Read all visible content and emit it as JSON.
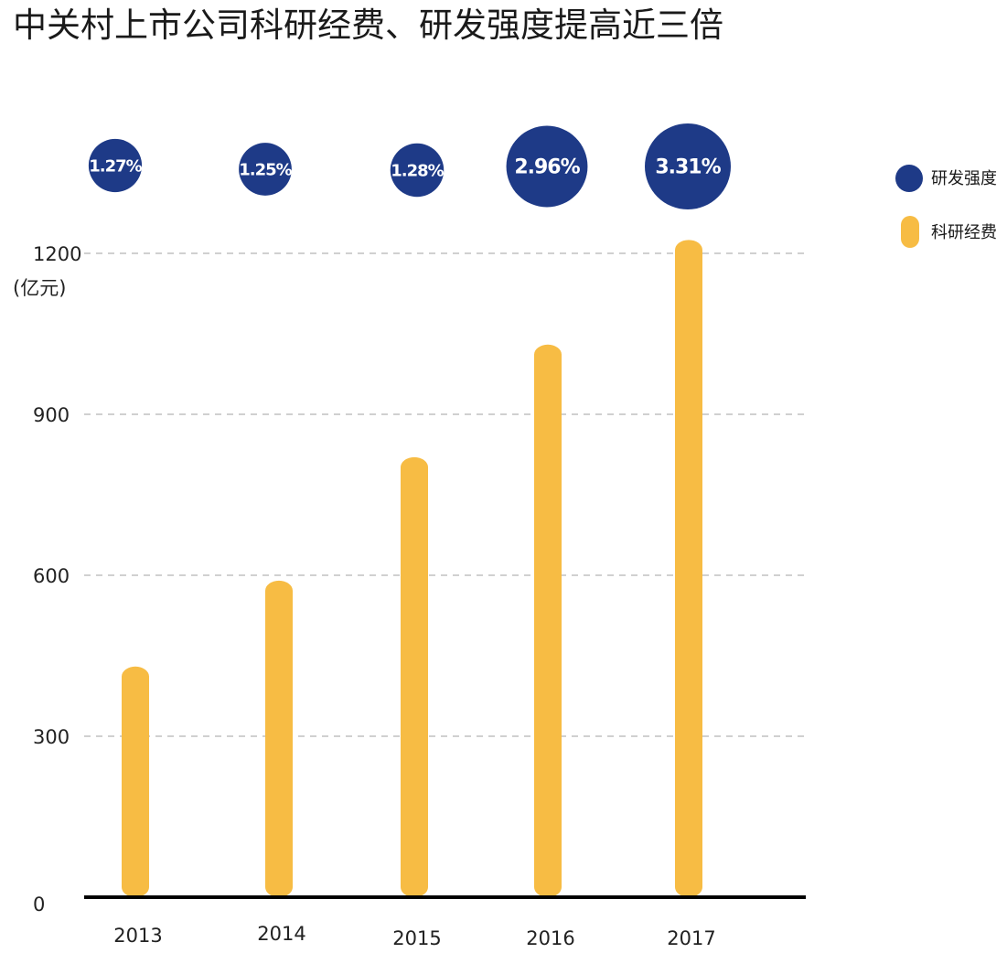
{
  "chart_data": {
    "type": "bar",
    "title": "中关村上市公司科研经费、研发强度提高近三倍",
    "ylabel": "(亿元)",
    "ylim": [
      0,
      1200
    ],
    "yticks": [
      0,
      300,
      600,
      900,
      1200
    ],
    "grid": true,
    "legend_position": "right",
    "categories": [
      "2013",
      "2014",
      "2015",
      "2016",
      "2017"
    ],
    "series": [
      {
        "name": "科研经费",
        "type": "bar",
        "color": "#F7BC44",
        "values": [
          430,
          590,
          820,
          1030,
          1225
        ]
      },
      {
        "name": "研发强度",
        "type": "bubble",
        "color": "#1E3A87",
        "values": [
          1.27,
          1.25,
          1.28,
          2.96,
          3.31
        ],
        "labels": [
          "1.27%",
          "1.25%",
          "1.28%",
          "2.96%",
          "3.31%"
        ]
      }
    ]
  }
}
